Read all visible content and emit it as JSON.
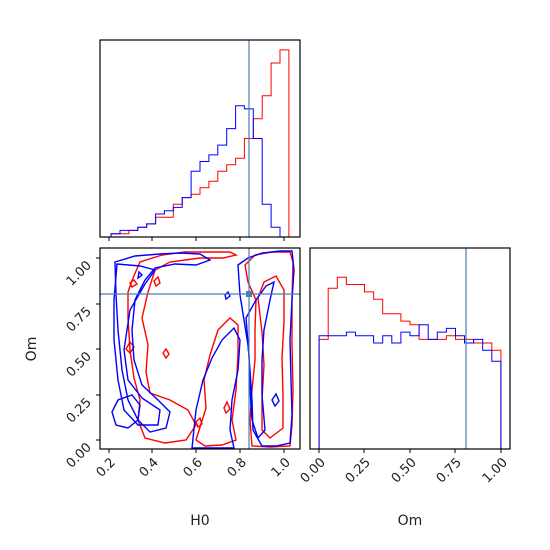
{
  "chart_data": {
    "type": "corner",
    "parameters": [
      "H0",
      "Om"
    ],
    "truth": {
      "H0": 0.84,
      "Om": 0.8
    },
    "colors": {
      "red": "#ff0000",
      "blue": "#0000ff",
      "truth": "#4a7fb0"
    },
    "panels": [
      {
        "kind": "hist",
        "param": "H0",
        "xlim": [
          0.15,
          1.05
        ],
        "bin_edges": [
          0.2,
          0.24,
          0.28,
          0.32,
          0.36,
          0.4,
          0.44,
          0.48,
          0.52,
          0.56,
          0.6,
          0.64,
          0.68,
          0.72,
          0.76,
          0.8,
          0.84,
          0.88,
          0.92,
          0.96,
          1.0
        ],
        "series": [
          {
            "color": "red",
            "counts": [
              1,
              1,
              2,
              3,
              4,
              6,
              6,
              10,
              12,
              13,
              15,
              17,
              20,
              22,
              24,
              30,
              36,
              43,
              53,
              57
            ]
          },
          {
            "color": "blue",
            "counts": [
              1,
              2,
              2,
              3,
              4,
              7,
              8,
              9,
              12,
              20,
              23,
              25,
              28,
              33,
              40,
              39,
              30,
              10,
              3,
              0
            ]
          }
        ]
      },
      {
        "kind": "contour",
        "x": "H0",
        "y": "Om",
        "xlim": [
          0.15,
          1.05
        ],
        "ylim": [
          -0.05,
          1.05
        ],
        "xticks": [
          "0.2",
          "0.4",
          "0.6",
          "0.8",
          "1.0"
        ],
        "yticks": [
          "0.00",
          "0.25",
          "0.50",
          "0.75",
          "1.00"
        ],
        "xlabel": "H0",
        "ylabel": "Om"
      },
      {
        "kind": "hist",
        "param": "Om",
        "xlim": [
          -0.05,
          1.05
        ],
        "xticks": [
          "0.00",
          "0.25",
          "0.50",
          "0.75",
          "1.00"
        ],
        "xlabel": "Om",
        "bin_edges": [
          0.0,
          0.05,
          0.1,
          0.15,
          0.2,
          0.25,
          0.3,
          0.35,
          0.4,
          0.45,
          0.5,
          0.55,
          0.6,
          0.65,
          0.7,
          0.75,
          0.8,
          0.85,
          0.9,
          0.95,
          1.0
        ],
        "series": [
          {
            "color": "red",
            "counts": [
              30,
              44,
              47,
              45,
              45,
              43,
              41,
              37,
              37,
              35,
              34,
              30,
              30,
              30,
              31,
              30,
              30,
              29,
              29,
              27
            ]
          },
          {
            "color": "blue",
            "counts": [
              31,
              31,
              31,
              32,
              31,
              31,
              29,
              31,
              29,
              32,
              31,
              34,
              30,
              32,
              33,
              31,
              29,
              30,
              27,
              24
            ]
          }
        ]
      }
    ]
  }
}
